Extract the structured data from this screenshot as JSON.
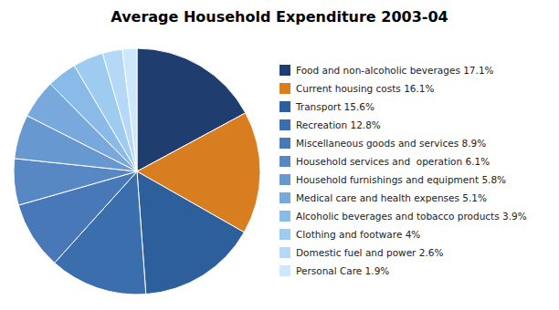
{
  "chart_data": {
    "type": "pie",
    "title": "Average Household Expenditure 2003-04",
    "categories": [
      "Food and non-alcoholic beverages 17.1%",
      "Current housing costs 16.1%",
      "Transport 15.6%",
      "Recreation 12.8%",
      "Miscellaneous goods and services 8.9%",
      "Household services and  operation 6.1%",
      "Household furnishings and equipment 5.8%",
      "Medical care and health expenses 5.1%",
      "Alcoholic beverages and tobacco products 3.9%",
      "Clothing and footware 4%",
      "Domestic fuel and power 2.6%",
      "Personal Care 1.9%"
    ],
    "values": [
      17.1,
      16.1,
      15.6,
      12.8,
      8.9,
      6.1,
      5.8,
      5.1,
      3.9,
      4.0,
      2.6,
      1.9
    ],
    "colors": [
      "#1F3D6E",
      "#D97E20",
      "#2C5F9C",
      "#3A6EAC",
      "#4878B8",
      "#5888C4",
      "#6898D0",
      "#78A8DC",
      "#8ABBE8",
      "#9ECBF0",
      "#B4D8F5",
      "#CDE8FA"
    ],
    "legend": "right"
  }
}
